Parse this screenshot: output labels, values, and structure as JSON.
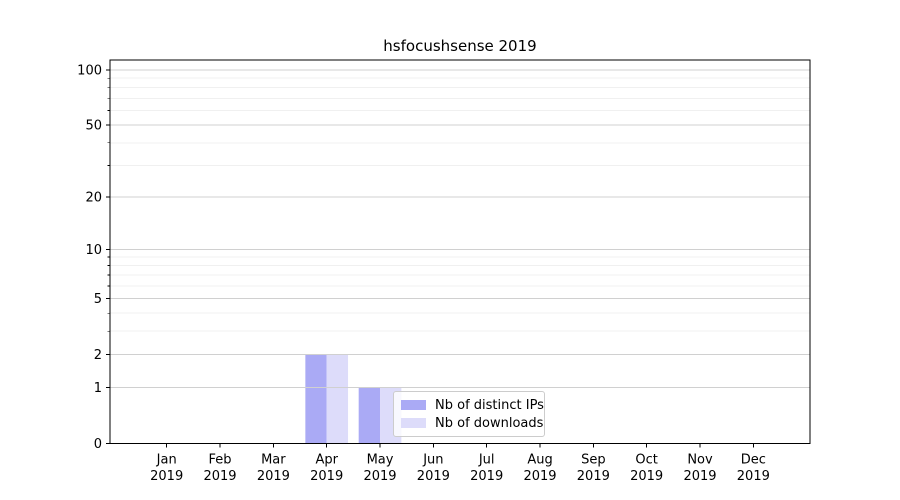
{
  "chart_data": {
    "type": "bar",
    "title": "hsfocushsense 2019",
    "categories": [
      "Jan",
      "Feb",
      "Mar",
      "Apr",
      "May",
      "Jun",
      "Jul",
      "Aug",
      "Sep",
      "Oct",
      "Nov",
      "Dec"
    ],
    "x_year": "2019",
    "series": [
      {
        "name": "Nb of distinct IPs",
        "color": "#aaaaf5",
        "values": [
          0,
          0,
          0,
          2,
          1,
          0,
          0,
          0,
          0,
          0,
          0,
          0
        ]
      },
      {
        "name": "Nb of downloads",
        "color": "#dddcfa",
        "values": [
          0,
          0,
          0,
          2,
          1,
          0,
          0,
          0,
          0,
          0,
          0,
          0
        ]
      }
    ],
    "yscale": "log1p",
    "yticks_major": [
      0,
      1,
      2,
      5,
      10,
      20,
      50,
      100
    ],
    "yticks_minor": [
      3,
      4,
      6,
      7,
      8,
      9,
      30,
      40,
      60,
      70,
      80,
      90
    ],
    "ylim": [
      0,
      113
    ],
    "xlabel": "",
    "ylabel": "",
    "grid": "horizontal",
    "legend_position": "lower center-right inside plot",
    "colors": {
      "grid_major": "#d0d0d0",
      "grid_minor": "#f0f0f0",
      "spine": "#000000",
      "tick": "#000000",
      "text": "#000000"
    }
  }
}
